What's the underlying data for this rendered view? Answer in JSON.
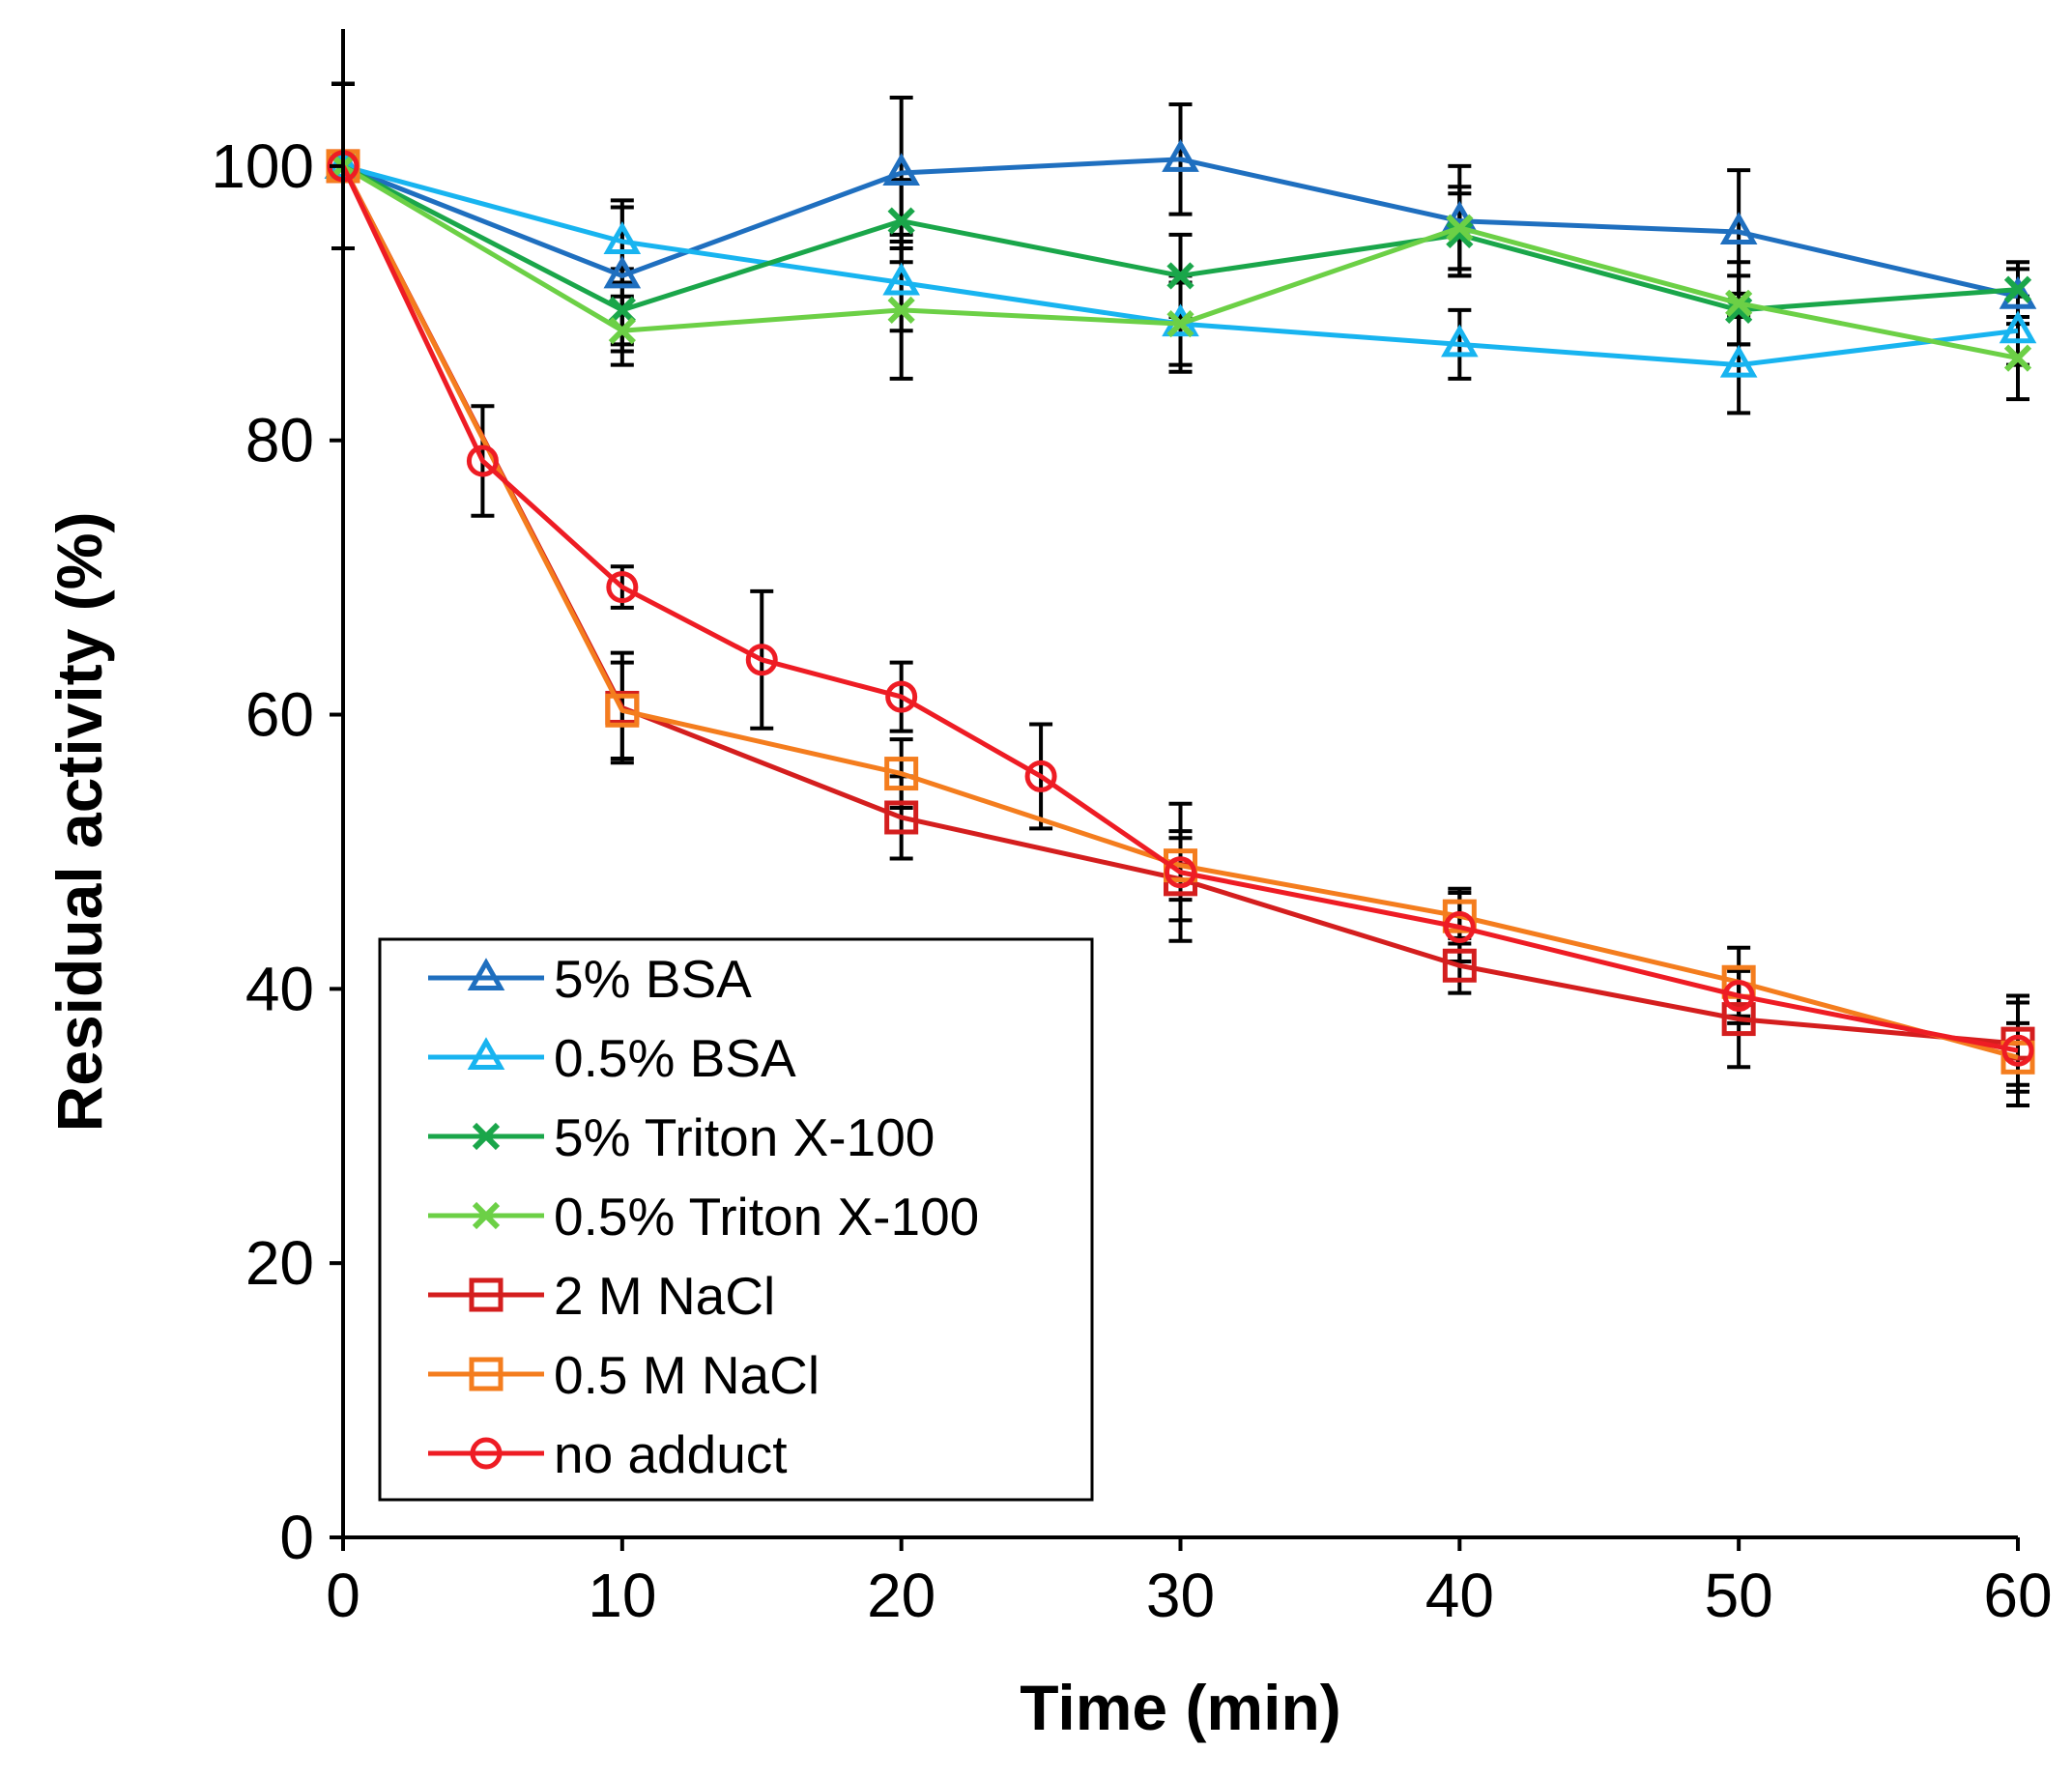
{
  "chart_data": {
    "type": "line",
    "title": "",
    "xlabel": "Time (min)",
    "ylabel": "Residual activity (%)",
    "xlim": [
      0,
      60
    ],
    "ylim": [
      0,
      110
    ],
    "xticks": [
      0,
      10,
      20,
      30,
      40,
      50,
      60
    ],
    "yticks": [
      0,
      20,
      40,
      60,
      80,
      100
    ],
    "grid": false,
    "legend_position": "bottom-left",
    "series": [
      {
        "name": "5% BSA",
        "color": "#1f6fbf",
        "marker": "triangle",
        "x": [
          0,
          10,
          20,
          30,
          40,
          50,
          60
        ],
        "y": [
          100,
          92,
          99.5,
          100.5,
          96,
          95.2,
          90.5
        ],
        "err": [
          6,
          5,
          5.5,
          4,
          4,
          4.5,
          2
        ]
      },
      {
        "name": "0.5% BSA",
        "color": "#18b4f0",
        "marker": "triangle",
        "x": [
          0,
          10,
          20,
          30,
          40,
          50,
          60
        ],
        "y": [
          100,
          94.5,
          91.5,
          88.5,
          87,
          85.5,
          88
        ],
        "err": [
          6,
          3,
          3.5,
          3,
          2.5,
          3.5,
          2.5
        ]
      },
      {
        "name": "5% Triton X-100",
        "color": "#1aa64a",
        "marker": "x",
        "x": [
          0,
          10,
          20,
          30,
          40,
          50,
          60
        ],
        "y": [
          100,
          89.5,
          96,
          92,
          95,
          89.5,
          91
        ],
        "err": [
          6,
          3,
          3,
          3,
          3,
          2.5,
          2
        ]
      },
      {
        "name": "0.5% Triton X-100",
        "color": "#6cd046",
        "marker": "x",
        "x": [
          0,
          10,
          20,
          30,
          40,
          50,
          60
        ],
        "y": [
          100,
          88,
          89.5,
          88.5,
          95.5,
          90,
          86
        ],
        "err": [
          6,
          2.5,
          5,
          3.5,
          3,
          3,
          3
        ]
      },
      {
        "name": "2 M NaCl",
        "color": "#d41e1e",
        "marker": "square",
        "x": [
          0,
          10,
          20,
          30,
          40,
          50,
          60
        ],
        "y": [
          100,
          60.5,
          52.5,
          48,
          41.7,
          37.8,
          36
        ],
        "err": [
          6,
          4,
          3,
          3,
          2,
          3.5,
          3
        ]
      },
      {
        "name": "0.5 M NaCl",
        "color": "#f47d1e",
        "marker": "square",
        "x": [
          0,
          10,
          20,
          30,
          40,
          50,
          60
        ],
        "y": [
          100,
          60.3,
          55.7,
          49,
          45.3,
          40.5,
          35
        ],
        "err": [
          6,
          3.5,
          2.5,
          2.5,
          2,
          2.5,
          2.5
        ]
      },
      {
        "name": "no adduct",
        "color": "#ee1c24",
        "marker": "circle",
        "x": [
          0,
          5,
          10,
          15,
          20,
          25,
          30,
          40,
          50,
          60
        ],
        "y": [
          100,
          78.5,
          69.3,
          64,
          61.3,
          55.5,
          48.5,
          44.5,
          39.5,
          35.5
        ],
        "err": [
          6,
          4,
          1.5,
          5,
          2.5,
          3.8,
          5,
          2.5,
          2,
          4
        ]
      }
    ]
  }
}
